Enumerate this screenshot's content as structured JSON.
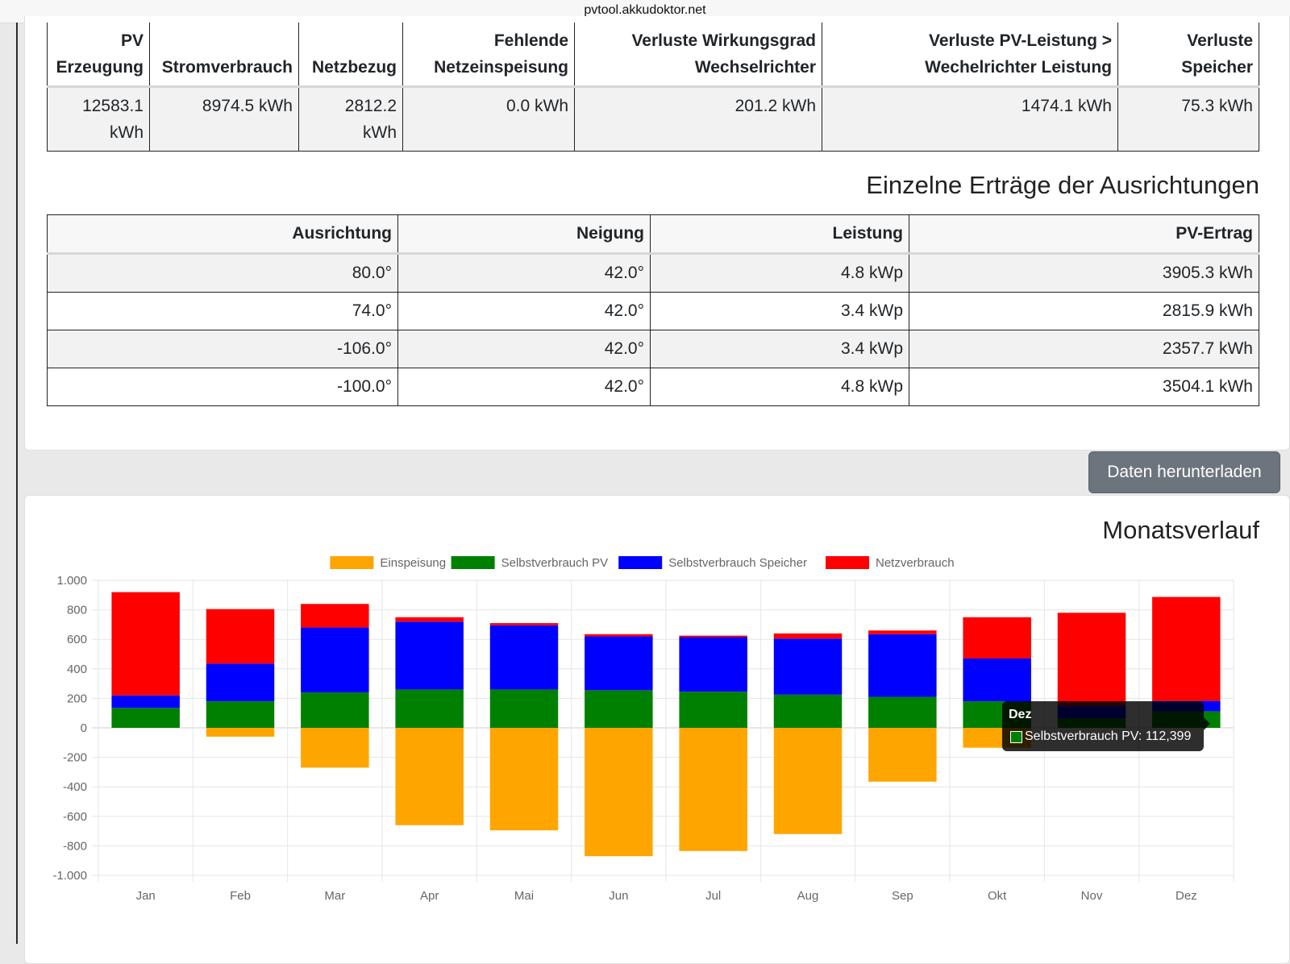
{
  "browser": {
    "url": "pvtool.akkudoktor.net"
  },
  "summary_table": {
    "headers": [
      [
        "PV",
        "Erzeugung"
      ],
      [
        "Stromverbrauch"
      ],
      [
        "Netzbezug"
      ],
      [
        "Fehlende",
        "Netzeinspeisung"
      ],
      [
        "Verluste Wirkungsgrad",
        "Wechselrichter"
      ],
      [
        "Verluste PV-Leistung >",
        "Wechelrichter Leistung"
      ],
      [
        "Verluste",
        "Speicher"
      ]
    ],
    "values": [
      [
        "12583.1",
        "kWh"
      ],
      [
        "8974.5 kWh"
      ],
      [
        "2812.2",
        "kWh"
      ],
      [
        "0.0 kWh"
      ],
      [
        "201.2 kWh"
      ],
      [
        "1474.1 kWh"
      ],
      [
        "75.3 kWh"
      ]
    ]
  },
  "orientation_section": {
    "title": "Einzelne Erträge der Ausrichtungen",
    "headers": [
      "Ausrichtung",
      "Neigung",
      "Leistung",
      "PV-Ertrag"
    ],
    "rows": [
      [
        "80.0°",
        "42.0°",
        "4.8 kWp",
        "3905.3 kWh"
      ],
      [
        "74.0°",
        "42.0°",
        "3.4 kWp",
        "2815.9 kWh"
      ],
      [
        "-106.0°",
        "42.0°",
        "3.4 kWp",
        "2357.7 kWh"
      ],
      [
        "-100.0°",
        "42.0°",
        "4.8 kWp",
        "3504.1 kWh"
      ]
    ]
  },
  "download_button": {
    "label": "Daten herunterladen"
  },
  "chart_section": {
    "title": "Monatsverlauf"
  },
  "tooltip": {
    "title": "Dez",
    "text": "Selbstverbrauch PV: 112,399",
    "swatch_color": "#008000"
  },
  "chart_data": {
    "type": "bar",
    "stacked": true,
    "title": "Monatsverlauf",
    "categories": [
      "Jan",
      "Feb",
      "Mar",
      "Apr",
      "Mai",
      "Jun",
      "Jul",
      "Aug",
      "Sep",
      "Okt",
      "Nov",
      "Dez"
    ],
    "ylim": [
      -1000,
      1000
    ],
    "yticks": [
      "1.000",
      "800",
      "600",
      "400",
      "200",
      "0",
      "-200",
      "-400",
      "-600",
      "-800",
      "-1.000"
    ],
    "grid": true,
    "legend_position": "top",
    "series": [
      {
        "name": "Einspeisung",
        "color": "#FFA500",
        "values": [
          0,
          -60,
          -270,
          -660,
          -695,
          -870,
          -835,
          -720,
          -365,
          -135,
          0,
          0
        ]
      },
      {
        "name": "Selbstverbrauch PV",
        "color": "#008000",
        "values": [
          135,
          180,
          240,
          260,
          260,
          255,
          245,
          225,
          210,
          180,
          65,
          112.4
        ]
      },
      {
        "name": "Selbstverbrauch Speicher",
        "color": "#0000FF",
        "values": [
          85,
          255,
          440,
          460,
          435,
          365,
          370,
          380,
          425,
          290,
          85,
          70
        ]
      },
      {
        "name": "Netzverbrauch",
        "color": "#FF0000",
        "values": [
          700,
          370,
          160,
          30,
          15,
          15,
          10,
          35,
          25,
          280,
          630,
          705
        ]
      }
    ]
  }
}
